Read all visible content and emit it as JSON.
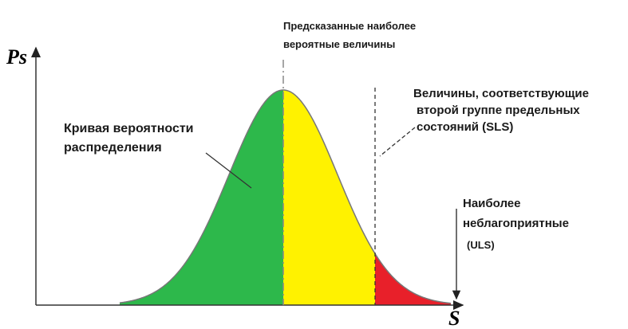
{
  "axes": {
    "y_label": "Ps",
    "x_label": "S"
  },
  "annotations": {
    "mode": [
      "Предсказанные наиболее",
      "вероятные величины"
    ],
    "sls": [
      "Величины, соответствующие",
      "второй группе предельных",
      "состояний (SLS)"
    ],
    "curve": [
      "Кривая вероятности",
      "распределения"
    ],
    "uls": [
      "Наиболее",
      "неблагоприятные",
      "(ULS)"
    ]
  }
}
